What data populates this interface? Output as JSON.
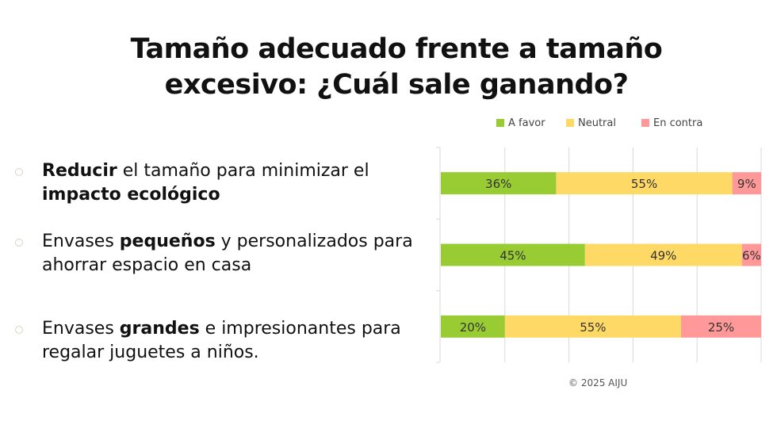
{
  "title": [
    "Tamaño adecuado frente a tamaño",
    "excesivo: ¿Cuál sale ganando?"
  ],
  "bullets": [
    {
      "segments": [
        {
          "text": "Reducir",
          "bold": true
        },
        {
          "text": " el tamaño para minimizar el ",
          "bold": false
        },
        {
          "text": "impacto ecológico",
          "bold": true
        }
      ]
    },
    {
      "segments": [
        {
          "text": "Envases ",
          "bold": false
        },
        {
          "text": "pequeños",
          "bold": true
        },
        {
          "text": " y personalizados para ahorrar espacio en casa",
          "bold": false
        }
      ]
    },
    {
      "segments": [
        {
          "text": "Envases ",
          "bold": false
        },
        {
          "text": "grandes",
          "bold": true
        },
        {
          "text": " e impresionantes para regalar juguetes a niños.",
          "bold": false
        }
      ]
    }
  ],
  "chart_data": {
    "type": "bar",
    "orientation": "horizontal",
    "stacked": true,
    "categories": [
      "Reducir el tamaño",
      "Envases pequeños",
      "Envases grandes"
    ],
    "series": [
      {
        "name": "A favor",
        "color": "#99cc33",
        "values": [
          36,
          45,
          20
        ]
      },
      {
        "name": "Neutral",
        "color": "#ffd966",
        "values": [
          55,
          49,
          55
        ]
      },
      {
        "name": "En contra",
        "color": "#ff9999",
        "values": [
          9,
          6,
          25
        ]
      }
    ],
    "data_labels": [
      [
        "36%",
        "45%",
        "20%"
      ],
      [
        "55%",
        "49%",
        "55%"
      ],
      [
        "9%",
        "6%",
        "25%"
      ]
    ],
    "xlim": [
      0,
      100
    ],
    "grid": true,
    "legend": "top"
  },
  "copyright": "© 2025 AIJU"
}
